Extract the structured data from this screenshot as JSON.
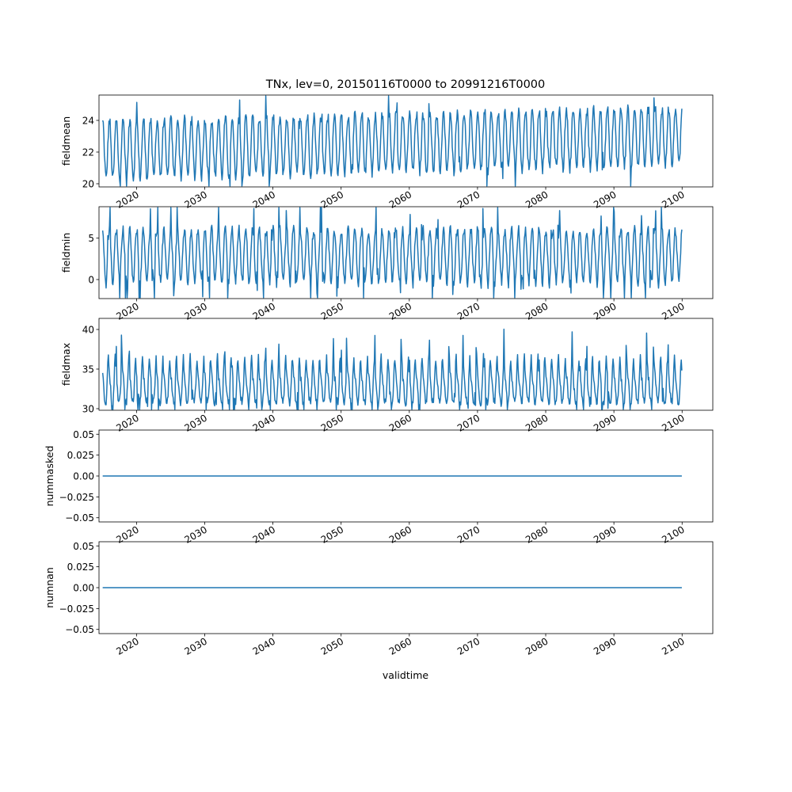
{
  "figure": {
    "title": "TNx, lev=0, 20150116T0000 to 20991216T0000",
    "xlabel": "validtime"
  },
  "colors": {
    "line": "#1f77b4",
    "axes": "#000000",
    "background": "#ffffff"
  },
  "chart_data": [
    {
      "type": "line",
      "ylabel": "fieldmean",
      "xlim": [
        2014.5,
        2104.5
      ],
      "ylim": [
        19.8,
        25.6
      ],
      "yticks": [
        20,
        22,
        24
      ],
      "xticks": [
        2020,
        2030,
        2040,
        2050,
        2060,
        2070,
        2080,
        2090,
        2100
      ],
      "x_range": [
        2015.04,
        2099.96
      ],
      "n_points": 1020,
      "monthly_pattern": [
        23.9,
        23.8,
        23.0,
        22.0,
        21.2,
        20.6,
        20.3,
        20.6,
        21.3,
        22.3,
        23.2,
        23.8
      ],
      "trend_per_year": 0.01,
      "peak_range": [
        23.9,
        25.3
      ],
      "trough_range": [
        20.1,
        21.3
      ],
      "grid": false
    },
    {
      "type": "line",
      "ylabel": "fieldmin",
      "xlim": [
        2014.5,
        2104.5
      ],
      "ylim": [
        -2.3,
        8.8
      ],
      "yticks": [
        0,
        5
      ],
      "xticks": [
        2020,
        2030,
        2040,
        2050,
        2060,
        2070,
        2080,
        2090,
        2100
      ],
      "x_range": [
        2015.04,
        2099.96
      ],
      "n_points": 1020,
      "monthly_pattern": [
        6.0,
        5.5,
        4.0,
        2.5,
        1.0,
        0.0,
        -0.5,
        0.5,
        2.0,
        3.5,
        5.0,
        5.8
      ],
      "peak_range": [
        5.0,
        8.5
      ],
      "trough_range": [
        -2.0,
        1.5
      ],
      "grid": false
    },
    {
      "type": "line",
      "ylabel": "fieldmax",
      "xlim": [
        2014.5,
        2104.5
      ],
      "ylim": [
        29.8,
        41.4
      ],
      "yticks": [
        30,
        35,
        40
      ],
      "xticks": [
        2020,
        2030,
        2040,
        2050,
        2060,
        2070,
        2080,
        2090,
        2100
      ],
      "x_range": [
        2015.04,
        2099.96
      ],
      "n_points": 1020,
      "monthly_pattern": [
        34.0,
        33.5,
        32.5,
        31.5,
        31.0,
        30.8,
        31.0,
        32.0,
        33.5,
        35.5,
        36.5,
        35.0
      ],
      "peak_range": [
        34.5,
        41.0
      ],
      "trough_range": [
        30.2,
        32.0
      ],
      "grid": false
    },
    {
      "type": "line",
      "ylabel": "nummasked",
      "xlim": [
        2014.5,
        2104.5
      ],
      "ylim": [
        -0.055,
        0.055
      ],
      "yticks": [
        -0.05,
        -0.025,
        0.0,
        0.025,
        0.05
      ],
      "ytick_labels": [
        "−0.05",
        "−0.025",
        "0.00",
        "0.025",
        "0.05"
      ],
      "xticks": [
        2020,
        2030,
        2040,
        2050,
        2060,
        2070,
        2080,
        2090,
        2100
      ],
      "x": [
        2015.04,
        2099.96
      ],
      "y": [
        0,
        0
      ],
      "grid": false
    },
    {
      "type": "line",
      "ylabel": "numnan",
      "xlim": [
        2014.5,
        2104.5
      ],
      "ylim": [
        -0.055,
        0.055
      ],
      "yticks": [
        -0.05,
        -0.025,
        0.0,
        0.025,
        0.05
      ],
      "ytick_labels": [
        "−0.05",
        "−0.025",
        "0.00",
        "0.025",
        "0.05"
      ],
      "xticks": [
        2020,
        2030,
        2040,
        2050,
        2060,
        2070,
        2080,
        2090,
        2100
      ],
      "x": [
        2015.04,
        2099.96
      ],
      "y": [
        0,
        0
      ],
      "grid": false
    }
  ]
}
